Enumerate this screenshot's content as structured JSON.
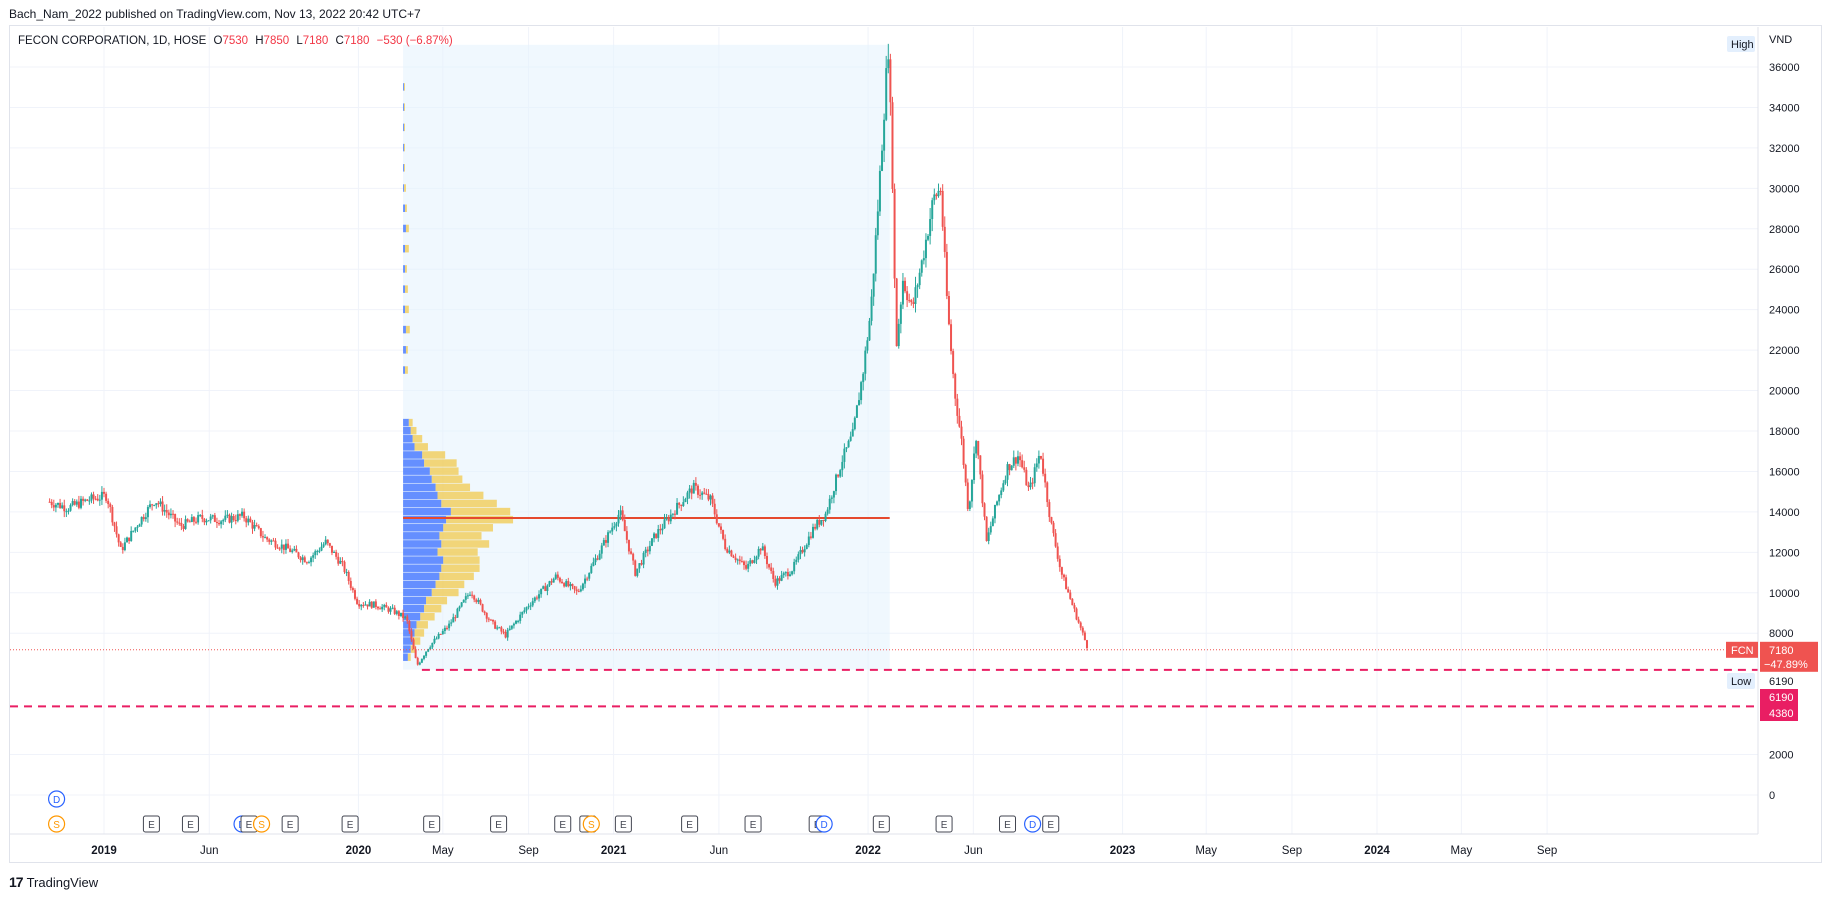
{
  "header": {
    "published": "Bach_Nam_2022 published on TradingView.com, Nov 13, 2022 20:42 UTC+7"
  },
  "legend": {
    "symbol": "FECON CORPORATION, 1D, HOSE",
    "o_label": "O",
    "o_value": "7530",
    "h_label": "H",
    "h_value": "7850",
    "l_label": "L",
    "l_value": "7180",
    "c_label": "C",
    "c_value": "7180",
    "change": "−530 (−6.87%)"
  },
  "footer": {
    "brand": "TradingView",
    "logo": "17"
  },
  "colors": {
    "up": "#26a69a",
    "down": "#ef5350",
    "poc": "#e5492e",
    "vp_blue": "#2962ff",
    "vp_yellow": "#f2c94c",
    "dashed": "#e91e63",
    "shade": "#e3f2fd"
  },
  "chart_data": {
    "type": "line",
    "symbol": "FCN",
    "currency": "VND",
    "ylim": [
      -2000,
      37000
    ],
    "y_ticks": [
      0,
      2000,
      8000,
      10000,
      12000,
      14000,
      16000,
      18000,
      20000,
      22000,
      24000,
      26000,
      28000,
      30000,
      32000,
      34000,
      36000
    ],
    "x_ticks": [
      "2019",
      "Jun",
      "2020",
      "May",
      "Sep",
      "2021",
      "Jun",
      "2022",
      "Jun",
      "2023",
      "May",
      "Sep",
      "2024",
      "May",
      "Sep"
    ],
    "x_tick_dates": [
      "2019-01-01",
      "2019-06-01",
      "2020-01-01",
      "2020-05-01",
      "2020-09-01",
      "2021-01-01",
      "2021-06-01",
      "2022-01-01",
      "2022-06-01",
      "2023-01-01",
      "2023-05-01",
      "2023-09-01",
      "2024-01-01",
      "2024-05-01",
      "2024-09-01"
    ],
    "x_range": [
      "2018-10-15",
      "2024-11-20"
    ],
    "price_path": [
      {
        "date": "2018-10-15",
        "price": 14500
      },
      {
        "date": "2018-11-10",
        "price": 14200
      },
      {
        "date": "2018-12-10",
        "price": 14600
      },
      {
        "date": "2019-01-05",
        "price": 14800
      },
      {
        "date": "2019-01-25",
        "price": 12100
      },
      {
        "date": "2019-02-20",
        "price": 13500
      },
      {
        "date": "2019-03-15",
        "price": 14600
      },
      {
        "date": "2019-04-20",
        "price": 13300
      },
      {
        "date": "2019-05-20",
        "price": 13700
      },
      {
        "date": "2019-06-20",
        "price": 13600
      },
      {
        "date": "2019-07-20",
        "price": 13800
      },
      {
        "date": "2019-08-20",
        "price": 12700
      },
      {
        "date": "2019-09-20",
        "price": 12200
      },
      {
        "date": "2019-10-20",
        "price": 11600
      },
      {
        "date": "2019-11-15",
        "price": 12500
      },
      {
        "date": "2019-12-10",
        "price": 11300
      },
      {
        "date": "2019-12-31",
        "price": 9500
      },
      {
        "date": "2020-01-25",
        "price": 9400
      },
      {
        "date": "2020-02-20",
        "price": 9100
      },
      {
        "date": "2020-03-10",
        "price": 8700
      },
      {
        "date": "2020-03-25",
        "price": 6400
      },
      {
        "date": "2020-04-10",
        "price": 7300
      },
      {
        "date": "2020-05-10",
        "price": 8400
      },
      {
        "date": "2020-06-10",
        "price": 10100
      },
      {
        "date": "2020-07-10",
        "price": 8500
      },
      {
        "date": "2020-07-30",
        "price": 7900
      },
      {
        "date": "2020-09-01",
        "price": 9400
      },
      {
        "date": "2020-10-10",
        "price": 10800
      },
      {
        "date": "2020-11-10",
        "price": 10000
      },
      {
        "date": "2020-12-10",
        "price": 11900
      },
      {
        "date": "2021-01-10",
        "price": 14000
      },
      {
        "date": "2021-02-01",
        "price": 11000
      },
      {
        "date": "2021-03-01",
        "price": 12800
      },
      {
        "date": "2021-04-01",
        "price": 14200
      },
      {
        "date": "2021-04-25",
        "price": 15200
      },
      {
        "date": "2021-05-20",
        "price": 14600
      },
      {
        "date": "2021-06-10",
        "price": 12300
      },
      {
        "date": "2021-07-10",
        "price": 11200
      },
      {
        "date": "2021-08-01",
        "price": 12300
      },
      {
        "date": "2021-08-20",
        "price": 10500
      },
      {
        "date": "2021-09-15",
        "price": 11200
      },
      {
        "date": "2021-10-15",
        "price": 13200
      },
      {
        "date": "2021-11-01",
        "price": 13900
      },
      {
        "date": "2021-11-25",
        "price": 16600
      },
      {
        "date": "2021-12-10",
        "price": 17800
      },
      {
        "date": "2021-12-25",
        "price": 21000
      },
      {
        "date": "2022-01-05",
        "price": 24000
      },
      {
        "date": "2022-01-15",
        "price": 29000
      },
      {
        "date": "2022-01-25",
        "price": 34500
      },
      {
        "date": "2022-01-30",
        "price": 37000
      },
      {
        "date": "2022-02-05",
        "price": 30500
      },
      {
        "date": "2022-02-10",
        "price": 22000
      },
      {
        "date": "2022-02-20",
        "price": 25500
      },
      {
        "date": "2022-03-05",
        "price": 24000
      },
      {
        "date": "2022-03-20",
        "price": 26500
      },
      {
        "date": "2022-04-05",
        "price": 29500
      },
      {
        "date": "2022-04-15",
        "price": 30000
      },
      {
        "date": "2022-04-25",
        "price": 24000
      },
      {
        "date": "2022-05-05",
        "price": 20000
      },
      {
        "date": "2022-05-15",
        "price": 17500
      },
      {
        "date": "2022-05-25",
        "price": 14000
      },
      {
        "date": "2022-06-05",
        "price": 17800
      },
      {
        "date": "2022-06-20",
        "price": 12500
      },
      {
        "date": "2022-07-05",
        "price": 14500
      },
      {
        "date": "2022-07-20",
        "price": 16200
      },
      {
        "date": "2022-08-05",
        "price": 16800
      },
      {
        "date": "2022-08-20",
        "price": 15000
      },
      {
        "date": "2022-09-05",
        "price": 17000
      },
      {
        "date": "2022-09-20",
        "price": 13500
      },
      {
        "date": "2022-10-05",
        "price": 11000
      },
      {
        "date": "2022-10-20",
        "price": 9500
      },
      {
        "date": "2022-11-13",
        "price": 7180
      }
    ],
    "volume_profile": {
      "range_start": "2020-03-05",
      "range_end": "2022-02-01",
      "poc_price": 13700,
      "rows": [
        {
          "price": 6800,
          "up": 5,
          "down": 3
        },
        {
          "price": 7200,
          "up": 8,
          "down": 5
        },
        {
          "price": 7600,
          "up": 10,
          "down": 8
        },
        {
          "price": 8000,
          "up": 12,
          "down": 10
        },
        {
          "price": 8400,
          "up": 14,
          "down": 12
        },
        {
          "price": 8800,
          "up": 18,
          "down": 15
        },
        {
          "price": 9200,
          "up": 22,
          "down": 18
        },
        {
          "price": 9600,
          "up": 24,
          "down": 22
        },
        {
          "price": 10000,
          "up": 30,
          "down": 28
        },
        {
          "price": 10400,
          "up": 34,
          "down": 30
        },
        {
          "price": 10800,
          "up": 38,
          "down": 36
        },
        {
          "price": 11200,
          "up": 40,
          "down": 40
        },
        {
          "price": 11600,
          "up": 42,
          "down": 38
        },
        {
          "price": 12000,
          "up": 36,
          "down": 42
        },
        {
          "price": 12400,
          "up": 40,
          "down": 50
        },
        {
          "price": 12800,
          "up": 38,
          "down": 44
        },
        {
          "price": 13200,
          "up": 42,
          "down": 52
        },
        {
          "price": 13600,
          "up": 45,
          "down": 70
        },
        {
          "price": 14000,
          "up": 50,
          "down": 62
        },
        {
          "price": 14400,
          "up": 40,
          "down": 58
        },
        {
          "price": 14800,
          "up": 36,
          "down": 48
        },
        {
          "price": 15200,
          "up": 34,
          "down": 36
        },
        {
          "price": 15600,
          "up": 30,
          "down": 32
        },
        {
          "price": 16000,
          "up": 28,
          "down": 30
        },
        {
          "price": 16400,
          "up": 22,
          "down": 34
        },
        {
          "price": 16800,
          "up": 20,
          "down": 24
        },
        {
          "price": 17200,
          "up": 12,
          "down": 14
        },
        {
          "price": 17600,
          "up": 10,
          "down": 10
        },
        {
          "price": 18000,
          "up": 8,
          "down": 6
        },
        {
          "price": 18400,
          "up": 6,
          "down": 4
        },
        {
          "price": 21000,
          "up": 2,
          "down": 3
        },
        {
          "price": 22000,
          "up": 3,
          "down": 2
        },
        {
          "price": 23000,
          "up": 3,
          "down": 4
        },
        {
          "price": 24000,
          "up": 2,
          "down": 4
        },
        {
          "price": 25000,
          "up": 2,
          "down": 3
        },
        {
          "price": 26000,
          "up": 2,
          "down": 2
        },
        {
          "price": 27000,
          "up": 2,
          "down": 4
        },
        {
          "price": 28000,
          "up": 3,
          "down": 3
        },
        {
          "price": 29000,
          "up": 2,
          "down": 2
        },
        {
          "price": 30000,
          "up": 1,
          "down": 2
        },
        {
          "price": 31000,
          "up": 1,
          "down": 1
        },
        {
          "price": 32000,
          "up": 1,
          "down": 1
        },
        {
          "price": 33000,
          "up": 1,
          "down": 1
        },
        {
          "price": 34000,
          "up": 1,
          "down": 1
        },
        {
          "price": 35000,
          "up": 1,
          "down": 1
        }
      ]
    },
    "horizontal_lines": [
      {
        "price": 6190,
        "style": "dashed",
        "label": "6190"
      },
      {
        "price": 4380,
        "style": "dashed",
        "label": "4380"
      }
    ],
    "price_labels": {
      "last_symbol": "FCN",
      "last_price": "7180",
      "last_change": "−47.89%",
      "high_label": "High",
      "low_label": "Low",
      "low_value": "6190"
    },
    "events": [
      {
        "date": "2018-10-25",
        "type": "D",
        "row": 1
      },
      {
        "date": "2018-10-25",
        "type": "S",
        "row": 2
      },
      {
        "date": "2019-03-10",
        "type": "E",
        "row": 2
      },
      {
        "date": "2019-05-05",
        "type": "E",
        "row": 2
      },
      {
        "date": "2019-07-18",
        "type": "D",
        "row": 2
      },
      {
        "date": "2019-07-28",
        "type": "E",
        "row": 2
      },
      {
        "date": "2019-08-15",
        "type": "S",
        "row": 2
      },
      {
        "date": "2019-09-25",
        "type": "E",
        "row": 2
      },
      {
        "date": "2019-12-20",
        "type": "E",
        "row": 2
      },
      {
        "date": "2020-04-15",
        "type": "E",
        "row": 2
      },
      {
        "date": "2020-07-20",
        "type": "E",
        "row": 2
      },
      {
        "date": "2020-10-20",
        "type": "E",
        "row": 2
      },
      {
        "date": "2020-11-25",
        "type": "E",
        "row": 2
      },
      {
        "date": "2020-11-30",
        "type": "S",
        "row": 2
      },
      {
        "date": "2021-01-15",
        "type": "E",
        "row": 2
      },
      {
        "date": "2021-04-20",
        "type": "E",
        "row": 2
      },
      {
        "date": "2021-07-20",
        "type": "E",
        "row": 2
      },
      {
        "date": "2021-10-20",
        "type": "E",
        "row": 2
      },
      {
        "date": "2021-10-30",
        "type": "D",
        "row": 2
      },
      {
        "date": "2022-01-20",
        "type": "E",
        "row": 2
      },
      {
        "date": "2022-04-20",
        "type": "E",
        "row": 2
      },
      {
        "date": "2022-07-20",
        "type": "E",
        "row": 2
      },
      {
        "date": "2022-08-25",
        "type": "D",
        "row": 2
      },
      {
        "date": "2022-09-20",
        "type": "E",
        "row": 2
      }
    ]
  }
}
